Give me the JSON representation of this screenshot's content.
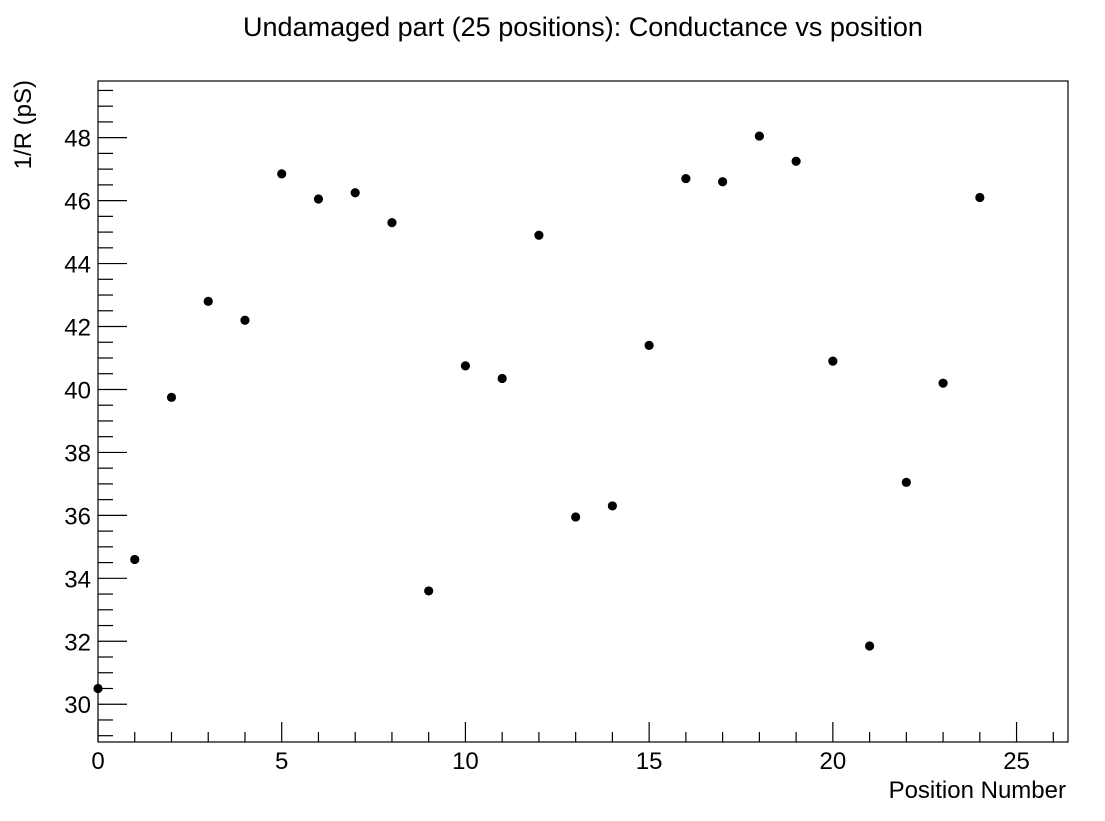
{
  "chart_data": {
    "type": "scatter",
    "title": "Undamaged part (25 positions): Conductance vs position",
    "xlabel": "Position Number",
    "ylabel": "1/R (pS)",
    "xlim": [
      0,
      26.4
    ],
    "ylim": [
      28.8,
      49.8
    ],
    "x_ticks": [
      0,
      5,
      10,
      15,
      20,
      25
    ],
    "y_ticks": [
      30,
      32,
      34,
      36,
      38,
      40,
      42,
      44,
      46,
      48
    ],
    "grid": false,
    "legend": "none",
    "marker_color": "#000000",
    "series": [
      {
        "x": [
          0,
          1,
          2,
          3,
          4,
          5,
          6,
          7,
          8,
          9,
          10,
          11,
          12,
          13,
          14,
          15,
          16,
          17,
          18,
          19,
          20,
          21,
          22,
          23,
          24
        ],
        "y": [
          30.5,
          34.6,
          39.75,
          42.8,
          42.2,
          46.85,
          46.05,
          46.25,
          45.3,
          33.6,
          40.75,
          40.35,
          44.9,
          35.95,
          36.3,
          41.4,
          46.7,
          46.6,
          48.05,
          47.25,
          40.9,
          31.85,
          37.05,
          40.2,
          46.1
        ]
      }
    ]
  }
}
